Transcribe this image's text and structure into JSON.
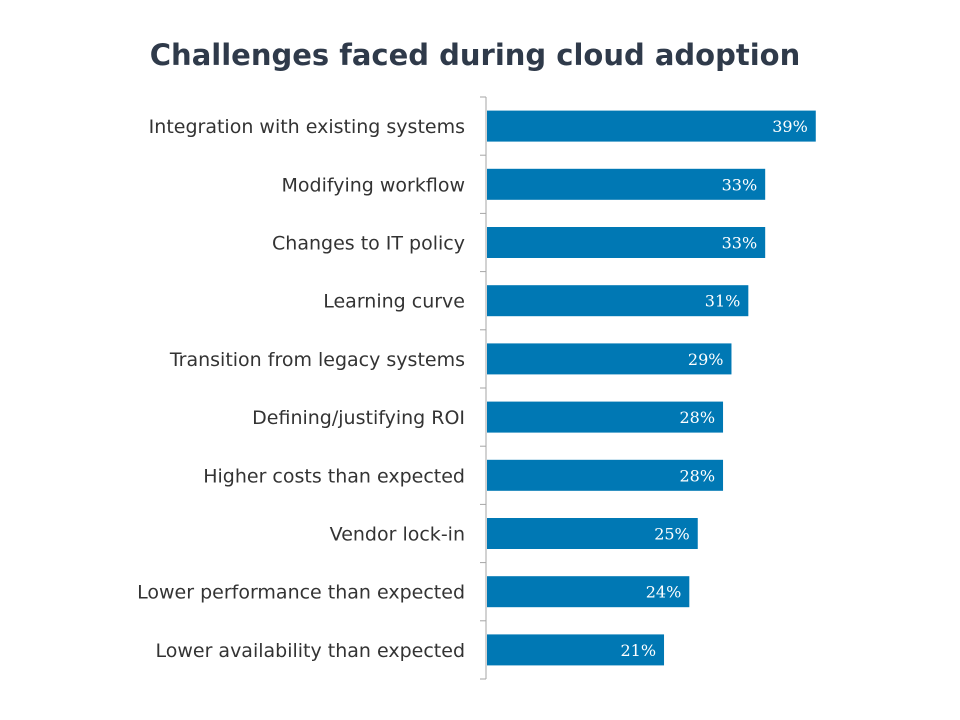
{
  "chart_data": {
    "type": "bar",
    "orientation": "horizontal",
    "title": "Challenges faced during cloud adoption",
    "categories": [
      "Integration with existing systems",
      "Modifying workflow ",
      "Changes to IT policy",
      "Learning curve",
      "Transition from legacy systems",
      "Defining/justifying ROI",
      "Higher costs than expected",
      "Vendor lock-in",
      "Lower performance than expected",
      "Lower availability than expected"
    ],
    "values": [
      39,
      33,
      33,
      31,
      29,
      28,
      28,
      25,
      24,
      21
    ],
    "value_labels": [
      "39%",
      "33%",
      "33%",
      "31%",
      "29%",
      "28%",
      "28%",
      "25%",
      "24%",
      "21%"
    ],
    "xlim": [
      0,
      100
    ],
    "grid": false,
    "legend": "none",
    "bar_color": "#0078b4",
    "axis_color": "#a6a6a6"
  }
}
